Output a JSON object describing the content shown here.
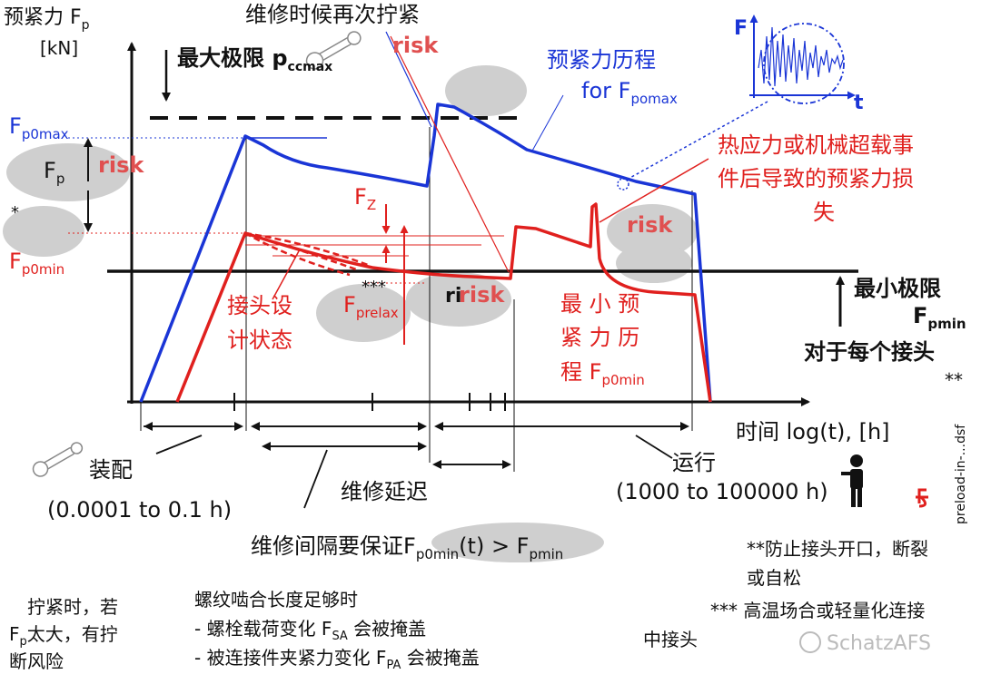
{
  "colors": {
    "red": "#e0201e",
    "blue": "#1a35d6",
    "black": "#111111",
    "blob": "#c8c8c8",
    "risk": "#e05050"
  },
  "icons": [
    "wrench-icon",
    "person-icon",
    "wrench-small-icon"
  ],
  "labels": {
    "y_axis_line1": "预紧力 F",
    "y_axis_sub": "p",
    "y_axis_unit": "[kN]",
    "retighten": "维修时候再次拧紧",
    "max_limit": "最大极限 p",
    "max_limit_sub": "ccmax",
    "risk": "risk",
    "risk_overlap": "ri",
    "blue_history_1": "预紧力历程",
    "blue_history_2": "for F",
    "blue_history_sub": "pomax",
    "inset_F": "F",
    "inset_t": "t",
    "fp0max": "F",
    "fp0max_sub": "p0max",
    "fp": "F",
    "fp_sub": "p",
    "star": "*",
    "fp0min": "F",
    "fp0min_sub": "p0min",
    "fz": "F",
    "fz_sub": "Z",
    "triple_star": "***",
    "fprelax": "F",
    "fprelax_sub": "prelax",
    "joint_design_1": "接头设",
    "joint_design_2": "计状态",
    "red_loss_1": "热应力或机械超载事",
    "red_loss_2": "件后导致的预紧力损",
    "red_loss_3": "失",
    "min_history_1": "最 小 预",
    "min_history_2": "紧 力 历",
    "min_history_3": "程 F",
    "min_history_sub": "p0min",
    "min_limit": "最小极限",
    "fpmin": "F",
    "fpmin_sub": "pmin",
    "per_joint": "对于每个接头",
    "double_star": "**",
    "time_axis": "时间 log(t), [h]",
    "side_text": "preload-in-...dsf",
    "assembly": "装配",
    "assembly_range": "(0.0001 to 0.1 h)",
    "maint_delay": "维修延迟",
    "operation": "运行",
    "operation_range": "(1000 to 100000 h)",
    "interval_1": "维修间隔要保证F",
    "interval_sub1": "p0min",
    "interval_2": "(t) > F",
    "interval_sub2": "pmin",
    "note_left_1": "拧紧时，若",
    "note_left_2a": "F",
    "note_left_2sub": "p",
    "note_left_2b": "太大，有拧",
    "note_left_3": "断风险",
    "note_mid_1": "螺纹啮合长度足够时",
    "note_mid_2a": "- 螺栓载荷变化 F",
    "note_mid_2sub": "SA",
    "note_mid_2b": " 会被掩盖",
    "note_mid_3a": "- 被连接件夹紧力变化 F",
    "note_mid_3sub": "PA",
    "note_mid_3b": " 会被掩盖",
    "note_right_1": "**防止接头开口，断裂",
    "note_right_2": "或自松",
    "note_right_3": "*** 高温场合或轻量化连接",
    "note_right_4": "中接头",
    "watermark": "SchatzAFS"
  }
}
